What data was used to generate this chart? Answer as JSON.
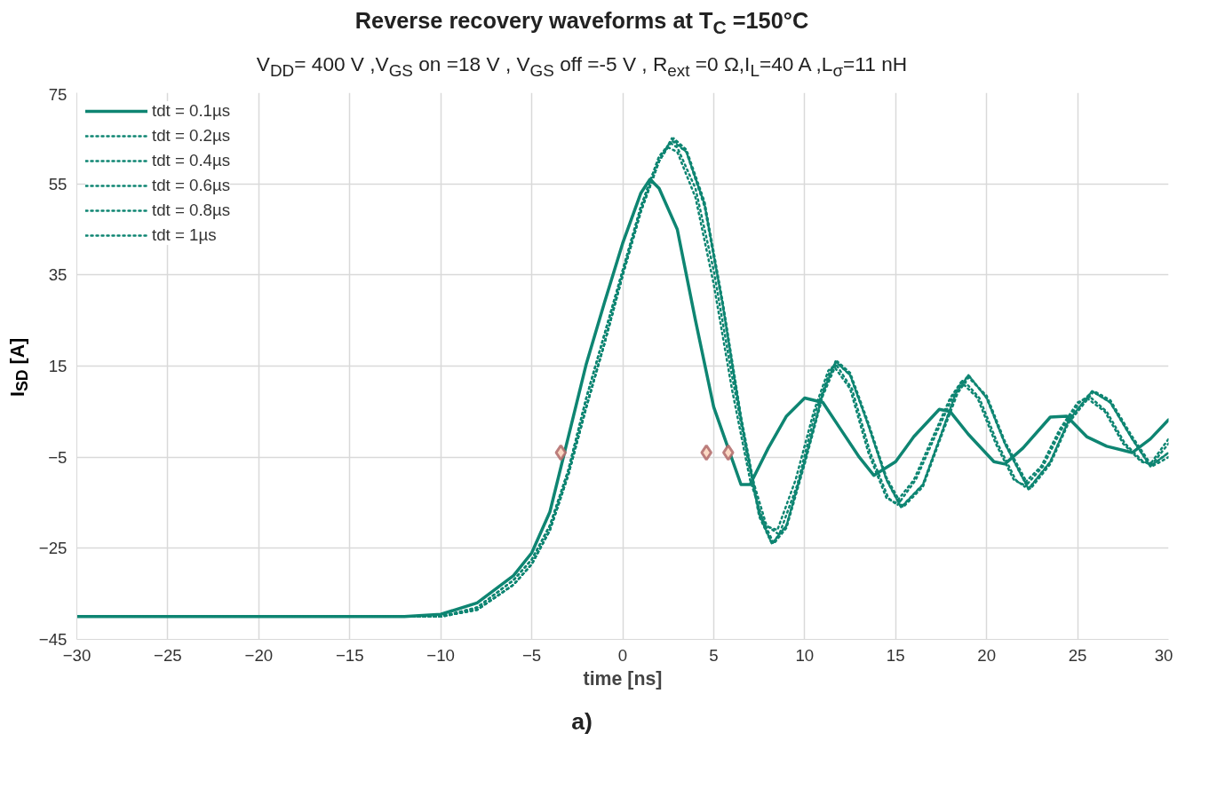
{
  "chart_data": {
    "type": "line",
    "title": "Reverse recovery waveforms at T$_{C}$ =150°C",
    "subtitle": "V$_{DD}$= 400 V ,V$_{GS}$ on =18 V , V$_{GS}$ off =-5 V , R$_{ext}$ =0 Ω,I$_{L}$=40 A ,L$_{σ}$=11 nH",
    "xlabel": "time [ns]",
    "ylabel": "I$_{SD}$ [A]",
    "annotations": [
      "a)"
    ],
    "xlim": [
      -30,
      30
    ],
    "xticks": [
      -30,
      -25,
      -20,
      -15,
      -10,
      -5,
      0,
      5,
      10,
      15,
      20,
      25,
      30
    ],
    "ylim": [
      -45,
      75
    ],
    "yticks": [
      -45,
      -25,
      -5,
      15,
      35,
      55,
      75
    ],
    "grid": true,
    "legend": "top left",
    "series": [
      {
        "name": "tdt = 0.1µs",
        "color": "#0e8572",
        "line_style": "solid",
        "x": [
          -30,
          -12,
          -10,
          -8,
          -6,
          -5,
          -4,
          -2,
          -1,
          0,
          1,
          1.5,
          2,
          3,
          4,
          5,
          6.5,
          7,
          8,
          9,
          10,
          11,
          12,
          13,
          13.8,
          15,
          16,
          17.4,
          18,
          19,
          20.4,
          21,
          22,
          23.5,
          24.4,
          25.5,
          26.6,
          28,
          29,
          30
        ],
        "values": [
          -40,
          -40,
          -39.5,
          -37,
          -31,
          -26,
          -17,
          15.5,
          29,
          42,
          53,
          56,
          54,
          45,
          25,
          6,
          -11,
          -11,
          -3,
          4,
          8,
          7,
          1,
          -5,
          -9,
          -6,
          -0.5,
          5.5,
          5,
          0,
          -6,
          -6.5,
          -3,
          3.8,
          4,
          -0.5,
          -2.6,
          -4,
          -1,
          3.2
        ]
      },
      {
        "name": "tdt = 0.2µs",
        "color": "#0e8572",
        "line_style": "dotted",
        "x": [
          -30,
          -12,
          -10,
          -8,
          -6,
          -5,
          -4,
          -3,
          -2,
          -1,
          0,
          1,
          2,
          2.5,
          3,
          4,
          5,
          6,
          7,
          7.8,
          8.5,
          9.5,
          10.5,
          11.3,
          11.6,
          12.5,
          13.5,
          14.5,
          15,
          16,
          17,
          18,
          18.6,
          19.5,
          20.5,
          21.5,
          22,
          23,
          24,
          25,
          25.5,
          26.5,
          27.5,
          28.5,
          29,
          30
        ],
        "values": [
          -40,
          -40,
          -40,
          -38,
          -32,
          -27.5,
          -20,
          -8,
          8,
          22,
          36,
          50,
          61,
          63,
          62,
          52,
          33,
          10,
          -10,
          -20,
          -21,
          -10,
          5,
          14,
          15,
          10,
          -4,
          -14,
          -15,
          -10,
          -1,
          8,
          11.5,
          8,
          -2,
          -10,
          -11,
          -7,
          1,
          7,
          8,
          5,
          -2,
          -6,
          -6.5,
          -1
        ]
      },
      {
        "name": "tdt = 0.4µs",
        "color": "#0e8572",
        "line_style": "dotted",
        "x": [
          -30,
          -12,
          -10,
          -8,
          -6,
          -5,
          -4,
          -3,
          -2,
          -1,
          0,
          1,
          2,
          2.6,
          3,
          4,
          5,
          6,
          7,
          7.9,
          8.6,
          9.6,
          10.6,
          11.4,
          11.7,
          12.6,
          13.6,
          14.6,
          15.1,
          16.1,
          17.1,
          18.1,
          18.7,
          19.6,
          20.6,
          21.6,
          22.1,
          23.1,
          24.1,
          25.1,
          25.6,
          26.6,
          27.6,
          28.6,
          29.1,
          30
        ],
        "values": [
          -40,
          -40,
          -40,
          -38,
          -32,
          -27.5,
          -20,
          -8,
          8,
          22,
          36,
          50,
          61,
          64,
          63,
          54,
          36,
          13,
          -8,
          -20,
          -22,
          -11,
          5,
          14,
          15.5,
          10,
          -4,
          -14,
          -15.5,
          -10,
          -1,
          8,
          12,
          8,
          -2,
          -10,
          -11.5,
          -7,
          1,
          7,
          8.5,
          5,
          -2,
          -6,
          -6.5,
          -2
        ]
      },
      {
        "name": "tdt = 0.6µs",
        "color": "#0e8572",
        "line_style": "dotted",
        "x": [
          -30,
          -12,
          -10,
          -8,
          -6,
          -5,
          -4,
          -3,
          -2,
          -1,
          0,
          1,
          2,
          2.7,
          3.5,
          4.5,
          5.5,
          6.5,
          7.5,
          8.2,
          9,
          10,
          11,
          11.7,
          12.5,
          13.5,
          14.5,
          15.3,
          16.5,
          17.5,
          18.3,
          19,
          20,
          21,
          22.3,
          23.5,
          24.5,
          25.8,
          26.8,
          28,
          29,
          30
        ],
        "values": [
          -40,
          -40,
          -40,
          -38.5,
          -33,
          -28.5,
          -21,
          -9,
          6,
          20,
          35,
          49,
          60,
          65,
          62,
          50,
          28,
          3,
          -18,
          -24,
          -20,
          -6,
          9,
          16,
          13,
          2,
          -10,
          -16,
          -11,
          0,
          9,
          13,
          8,
          -2,
          -12,
          -6,
          3,
          9.5,
          7,
          -1,
          -7,
          -4
        ]
      },
      {
        "name": "tdt = 0.8µs",
        "color": "#0e8572",
        "line_style": "dotted",
        "x": [
          -30,
          -12,
          -10,
          -8,
          -6,
          -5,
          -4,
          -3,
          -2,
          -1,
          0,
          1,
          2,
          2.7,
          3.5,
          4.5,
          5.5,
          6.5,
          7.5,
          8.2,
          9,
          10,
          11,
          11.7,
          12.5,
          13.5,
          14.5,
          15.3,
          16.5,
          17.5,
          18.3,
          19,
          20,
          21,
          22.3,
          23.5,
          24.5,
          25.8,
          26.8,
          28,
          29,
          30
        ],
        "values": [
          -40,
          -40,
          -40,
          -38.5,
          -33,
          -28.5,
          -21,
          -9,
          6,
          20,
          35,
          49,
          60,
          64.5,
          62,
          50.5,
          28.5,
          3.5,
          -17.5,
          -24,
          -20,
          -6,
          9,
          16,
          13,
          2,
          -10,
          -16,
          -11,
          0,
          9,
          13,
          8,
          -2,
          -12,
          -6,
          3,
          9.5,
          7,
          -1,
          -7,
          -4
        ]
      },
      {
        "name": "tdt = 1µs",
        "color": "#0e8572",
        "line_style": "dotted",
        "x": [
          -30,
          -12,
          -10,
          -8,
          -6,
          -5,
          -4,
          -3,
          -2,
          -1,
          0,
          1,
          2,
          2.8,
          3.5,
          4.5,
          5.5,
          6.5,
          7.5,
          8.3,
          9,
          10,
          11,
          11.8,
          12.5,
          13.5,
          14.5,
          15.4,
          16.5,
          17.5,
          18.4,
          19,
          20,
          21,
          22.4,
          23.5,
          24.5,
          25.9,
          26.8,
          28,
          29.1,
          30
        ],
        "values": [
          -40,
          -40,
          -40,
          -38.5,
          -33,
          -28.5,
          -21,
          -9,
          6,
          20,
          35,
          49,
          60,
          65,
          62.5,
          51,
          29,
          4,
          -17,
          -24,
          -20.5,
          -6.5,
          8.5,
          16,
          13.5,
          2.5,
          -9.5,
          -16,
          -11.5,
          -0.5,
          9,
          12.5,
          8.5,
          -1.5,
          -12,
          -6.5,
          2.5,
          9.5,
          7.5,
          -0.5,
          -7,
          -5
        ]
      },
      {
        "type": "scatter",
        "marker": "diamond",
        "color": "#b06a6a",
        "x": [
          -3.4,
          4.6,
          5.8
        ],
        "values": [
          -4,
          -4,
          -4
        ]
      }
    ]
  }
}
